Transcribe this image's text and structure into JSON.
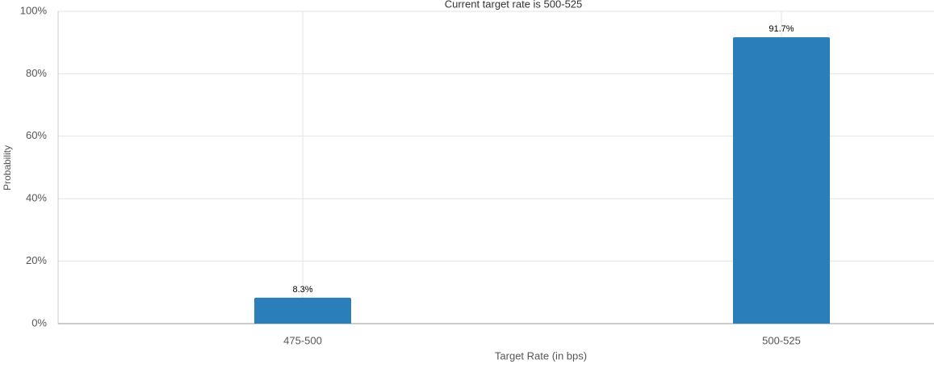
{
  "chart_data": {
    "type": "bar",
    "title": "Current target rate is 500-525",
    "x_label": "Target Rate (in bps)",
    "y_label": "Probability",
    "categories": [
      "475-500",
      "500-525"
    ],
    "values": [
      8.3,
      91.7
    ],
    "value_labels": [
      "8.3%",
      "91.7%"
    ],
    "color": "#2a7fba",
    "ylim": [
      0,
      100
    ],
    "yticks": [
      {
        "value": 0,
        "label": "0%"
      },
      {
        "value": 20,
        "label": "20%"
      },
      {
        "value": 40,
        "label": "40%"
      },
      {
        "value": 60,
        "label": "60%"
      },
      {
        "value": 80,
        "label": "80%"
      },
      {
        "value": 100,
        "label": "100%"
      }
    ],
    "grid": true
  }
}
